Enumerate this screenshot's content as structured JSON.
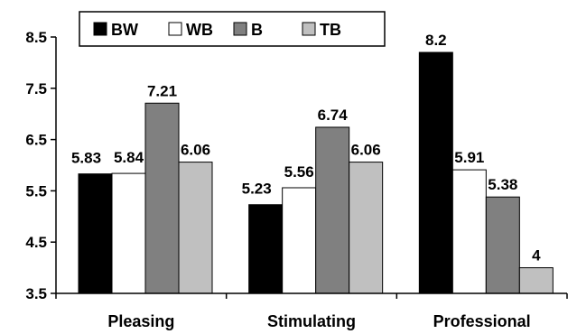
{
  "chart_data": {
    "type": "bar",
    "categories": [
      "Pleasing",
      "Stimulating",
      "Professional"
    ],
    "series": [
      {
        "name": "BW",
        "values": [
          5.83,
          5.23,
          8.2
        ],
        "color": "#000000"
      },
      {
        "name": "WB",
        "values": [
          5.84,
          5.56,
          5.91
        ],
        "color": "#ffffff"
      },
      {
        "name": "B",
        "values": [
          7.21,
          6.74,
          5.38
        ],
        "color": "#808080"
      },
      {
        "name": "TB",
        "values": [
          6.06,
          6.06,
          4
        ],
        "color": "#c0c0c0"
      }
    ],
    "data_labels": [
      [
        "5.83",
        "5.23",
        "8.2"
      ],
      [
        "5.84",
        "5.56",
        "5.91"
      ],
      [
        "7.21",
        "6.74",
        "5.38"
      ],
      [
        "6.06",
        "6.06",
        "4"
      ]
    ],
    "yticks": [
      "8.5",
      "7.5",
      "6.5",
      "5.5",
      "4.5",
      "3.5"
    ],
    "ylim": [
      3.5,
      8.5
    ],
    "legend_position": "top",
    "grid": false
  }
}
